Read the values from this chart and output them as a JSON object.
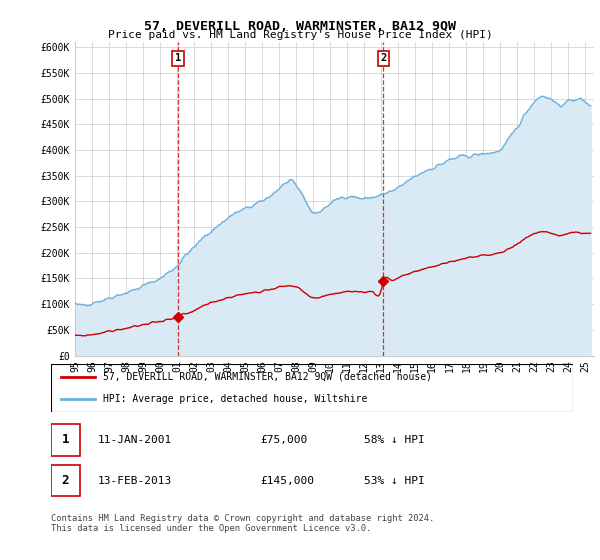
{
  "title": "57, DEVERILL ROAD, WARMINSTER, BA12 9QW",
  "subtitle": "Price paid vs. HM Land Registry's House Price Index (HPI)",
  "ylabel_ticks": [
    "£0",
    "£50K",
    "£100K",
    "£150K",
    "£200K",
    "£250K",
    "£300K",
    "£350K",
    "£400K",
    "£450K",
    "£500K",
    "£550K",
    "£600K"
  ],
  "ylabel_values": [
    0,
    50000,
    100000,
    150000,
    200000,
    250000,
    300000,
    350000,
    400000,
    450000,
    500000,
    550000,
    600000
  ],
  "ylim": [
    0,
    610000
  ],
  "xlim_start": 1995.0,
  "xlim_end": 2025.5,
  "sale1_x": 2001.04,
  "sale1_y": 75000,
  "sale1_label": "1",
  "sale2_x": 2013.12,
  "sale2_y": 145000,
  "sale2_label": "2",
  "hpi_color": "#6ab0de",
  "hpi_fill_color": "#daeaf5",
  "sale_color": "#cc0000",
  "vline_color": "#cc0000",
  "grid_color": "#cccccc",
  "background_color": "#ffffff",
  "legend_entry1": "57, DEVERILL ROAD, WARMINSTER, BA12 9QW (detached house)",
  "legend_entry2": "HPI: Average price, detached house, Wiltshire",
  "table_row1_num": "1",
  "table_row1_date": "11-JAN-2001",
  "table_row1_price": "£75,000",
  "table_row1_hpi": "58% ↓ HPI",
  "table_row2_num": "2",
  "table_row2_date": "13-FEB-2013",
  "table_row2_price": "£145,000",
  "table_row2_hpi": "53% ↓ HPI",
  "footnote": "Contains HM Land Registry data © Crown copyright and database right 2024.\nThis data is licensed under the Open Government Licence v3.0.",
  "xtick_years": [
    1995,
    1996,
    1997,
    1998,
    1999,
    2000,
    2001,
    2002,
    2003,
    2004,
    2005,
    2006,
    2007,
    2008,
    2009,
    2010,
    2011,
    2012,
    2013,
    2014,
    2015,
    2016,
    2017,
    2018,
    2019,
    2020,
    2021,
    2022,
    2023,
    2024,
    2025
  ]
}
